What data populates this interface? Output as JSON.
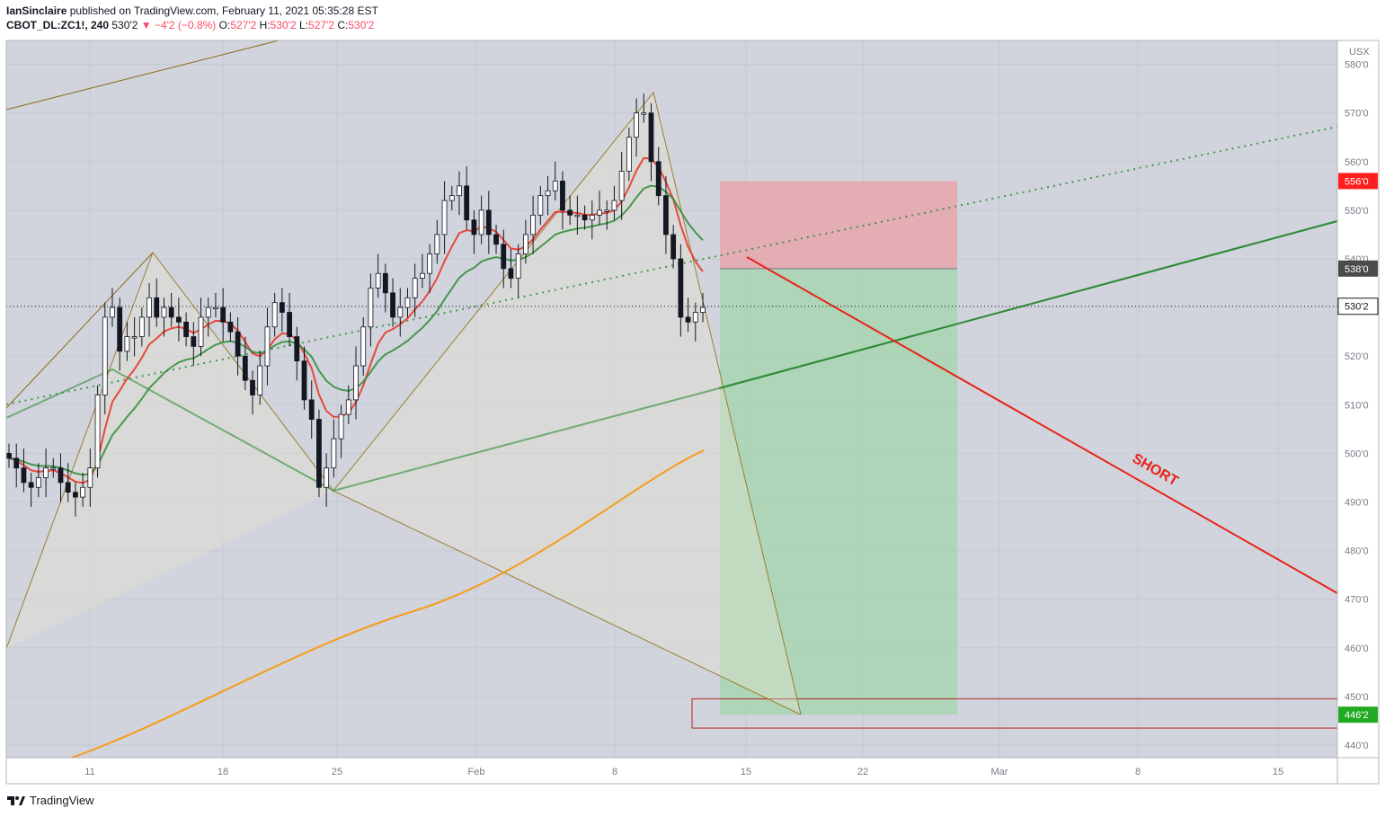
{
  "header": {
    "author": "IanSinclaire",
    "published_text": "published on TradingView.com, February 11, 2021 05:35:28 EST",
    "symbol": "CBOT_DL:ZC1!, 240",
    "last": "530'2",
    "change_arrow": "▼",
    "change": "−4'2 (−0.8%)",
    "o_label": "O:",
    "o_value": "527'2",
    "h_label": "H:",
    "h_value": "530'2",
    "l_label": "L:",
    "l_value": "527'2",
    "c_label": "C:",
    "c_value": "530'2"
  },
  "footer": {
    "brand": "TradingView"
  },
  "colors": {
    "background": "#d1d4dc",
    "stop_zone": "#e8a0a6",
    "target_zone": "#a8d5b0",
    "ema_fast": "#e8392b",
    "ema_slow": "#2e8b35",
    "ma_long": "#f59c1a",
    "pattern": "#8b6914",
    "short_line": "#e8231b",
    "price_current": "#131722",
    "price_stop": "#ff1e1e",
    "price_entry": "#4a4a4a",
    "price_target": "#22ab22"
  },
  "chart_data": {
    "type": "candlestick",
    "symbol": "CBOT_DL:ZC1!",
    "interval": "240",
    "currency": "USX",
    "y_ticks": [
      "580'0",
      "570'0",
      "560'0",
      "550'0",
      "540'0",
      "530'0",
      "520'0",
      "510'0",
      "500'0",
      "490'0",
      "480'0",
      "470'0",
      "460'0",
      "450'0",
      "440'0"
    ],
    "y_range": [
      437,
      582
    ],
    "x_ticks": [
      "11",
      "18",
      "25",
      "Feb",
      "8",
      "15",
      "22",
      "Mar",
      "8",
      "15"
    ],
    "price_labels": {
      "stop": "556'0",
      "entry": "538'0",
      "current": "530'2",
      "target": "446'2"
    },
    "annotation": "SHORT",
    "series": [
      {
        "name": "close",
        "values": [
          499,
          497,
          494,
          493,
          495,
          497,
          497,
          494,
          492,
          491,
          493,
          497,
          512,
          528,
          530,
          521,
          524,
          524,
          528,
          532,
          528,
          530,
          528,
          527,
          524,
          522,
          528,
          530,
          530,
          527,
          525,
          520,
          515,
          512,
          518,
          526,
          531,
          529,
          524,
          519,
          511,
          507,
          493,
          497,
          503,
          508,
          511,
          518,
          526,
          534,
          537,
          533,
          528,
          530,
          532,
          536,
          537,
          541,
          545,
          552,
          553,
          555,
          548,
          545,
          550,
          545,
          543,
          538,
          536,
          541,
          545,
          549,
          553,
          554,
          556,
          550,
          549,
          549,
          548,
          549,
          550,
          550,
          552,
          558,
          565,
          570,
          570,
          560,
          553,
          545,
          540,
          528,
          527,
          529,
          530
        ]
      }
    ]
  }
}
